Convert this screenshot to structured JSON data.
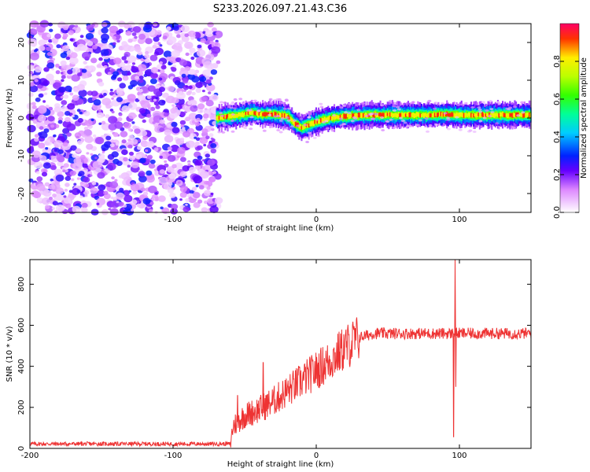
{
  "title": "S233.2026.097.21.43.C36",
  "chart_data": [
    {
      "type": "heatmap",
      "title": "S233.2026.097.21.43.C36",
      "xlabel": "Height of straight line (km)",
      "ylabel": "Frequency (Hz)",
      "xlim": [
        -200,
        150
      ],
      "ylim": [
        -25,
        25
      ],
      "xticks": [
        -200,
        -100,
        0,
        100
      ],
      "xtick_labels": [
        "-200",
        "-100",
        "0",
        "100"
      ],
      "yticks": [
        -20,
        -10,
        0,
        10,
        20
      ],
      "ytick_labels": [
        "-20",
        "-10",
        "0",
        "10",
        "20"
      ],
      "noise_region_x": [
        -200,
        -68
      ],
      "signal_start_x": -70,
      "ridge": {
        "x": [
          -70,
          -60,
          -50,
          -45,
          -40,
          -30,
          -20,
          -15,
          -10,
          0,
          10,
          20,
          40,
          60,
          80,
          90,
          100,
          150
        ],
        "y": [
          0,
          0.5,
          1,
          1.5,
          1.0,
          1.0,
          0.5,
          -1.5,
          -2.5,
          -1.0,
          0,
          0.5,
          0.8,
          0.8,
          0.8,
          1.0,
          0.8,
          0.8
        ]
      },
      "colorbar": {
        "label": "Normalized spectral amplitude",
        "range": [
          0,
          1
        ],
        "ticks": [
          0.0,
          0.2,
          0.4,
          0.6,
          0.8
        ],
        "tick_labels": [
          "0.0",
          "0.2",
          "0.4",
          "0.6",
          "0.8"
        ]
      }
    },
    {
      "type": "line",
      "xlabel": "Height of straight line (km)",
      "ylabel": "SNR (10 * v/v)",
      "xlim": [
        -200,
        150
      ],
      "ylim": [
        0,
        920
      ],
      "xticks": [
        -200,
        -100,
        0,
        100
      ],
      "xtick_labels": [
        "-200",
        "-100",
        "0",
        "100"
      ],
      "yticks": [
        0,
        200,
        400,
        600,
        800
      ],
      "ytick_labels": [
        "0",
        "200",
        "400",
        "600",
        "800"
      ],
      "series": [
        {
          "name": "SNR",
          "color": "#ee3333",
          "trend_x": [
            -200,
            -60,
            -58,
            -50,
            -40,
            -30,
            -20,
            -10,
            0,
            10,
            20,
            30,
            40,
            60,
            90,
            150
          ],
          "trend_y": [
            22,
            22,
            110,
            160,
            190,
            230,
            280,
            330,
            380,
            430,
            490,
            540,
            560,
            560,
            560,
            560
          ],
          "spikes": [
            {
              "x": -55,
              "y": 260
            },
            {
              "x": -37,
              "y": 420
            },
            {
              "x": 96,
              "y": 55
            },
            {
              "x": 97,
              "y": 920
            },
            {
              "x": 97.5,
              "y": 300
            }
          ]
        }
      ]
    }
  ]
}
